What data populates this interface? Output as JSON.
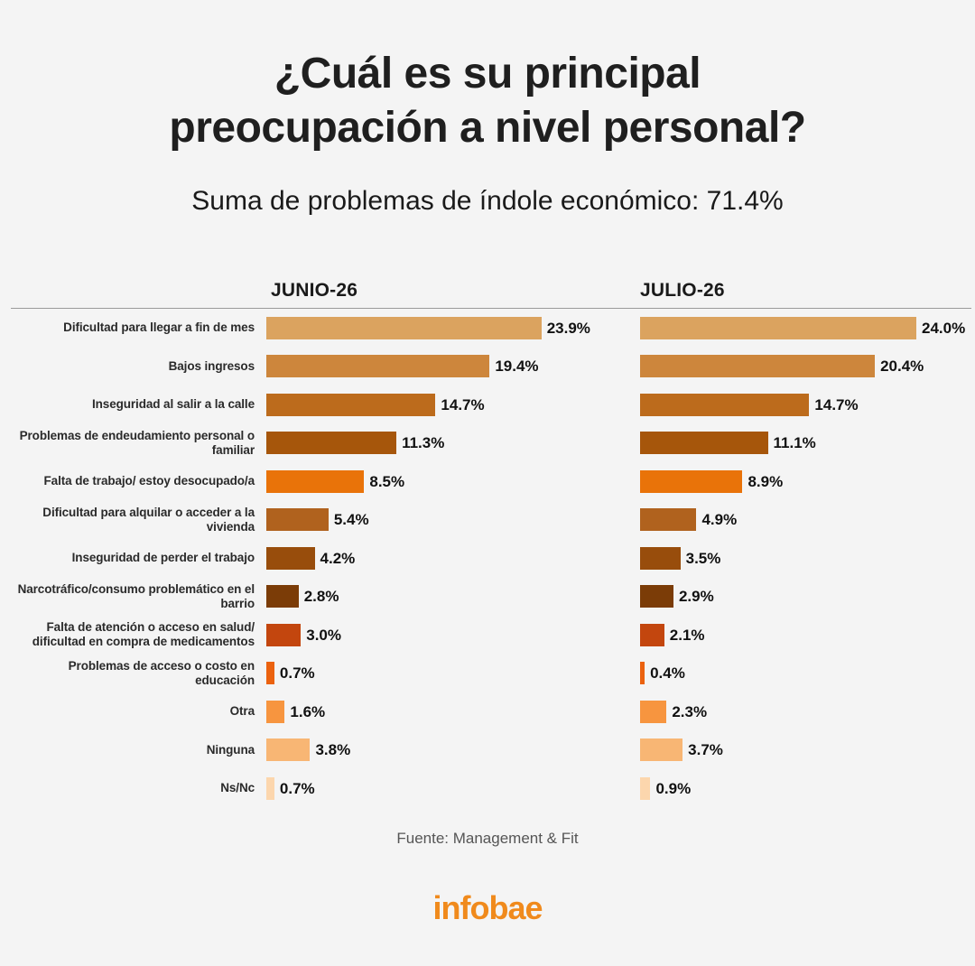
{
  "header": {
    "title_line1": "¿Cuál es su principal",
    "title_line2": "preocupación a nivel personal?",
    "subtitle": "Suma de problemas de índole económico: 71.4%"
  },
  "chart_data": {
    "type": "bar",
    "orientation": "horizontal",
    "categories": [
      "Dificultad para llegar a fin de mes",
      "Bajos ingresos",
      "Inseguridad al salir a la calle",
      "Problemas de endeudamiento personal o familiar",
      "Falta de trabajo/ estoy desocupado/a",
      "Dificultad para alquilar o acceder a la vivienda",
      "Inseguridad de perder el trabajo",
      "Narcotráfico/consumo problemático en el barrio",
      "Falta de atención o acceso en salud/ dificultad en compra de medicamentos",
      "Problemas de acceso o costo en educación",
      "Otra",
      "Ninguna",
      "Ns/Nc"
    ],
    "bar_colors": [
      "#dba35f",
      "#cd863c",
      "#bc6b1c",
      "#a6560b",
      "#e97309",
      "#b0621e",
      "#984d0c",
      "#7b3c07",
      "#c3460e",
      "#eb620f",
      "#f7953f",
      "#f8b674",
      "#fcd6ad"
    ],
    "series": [
      {
        "name": "JUNIO-26",
        "values": [
          23.9,
          19.4,
          14.7,
          11.3,
          8.5,
          5.4,
          4.2,
          2.8,
          3.0,
          0.7,
          1.6,
          3.8,
          0.7
        ],
        "labels": [
          "23.9%",
          "19.4%",
          "14.7%",
          "11.3%",
          "8.5%",
          "5.4%",
          "4.2%",
          "2.8%",
          "3.0%",
          "0.7%",
          "1.6%",
          "3.8%",
          "0.7%"
        ]
      },
      {
        "name": "JULIO-26",
        "values": [
          24.0,
          20.4,
          14.7,
          11.1,
          8.9,
          4.9,
          3.5,
          2.9,
          2.1,
          0.4,
          2.3,
          3.7,
          0.9
        ],
        "labels": [
          "24.0%",
          "20.4%",
          "14.7%",
          "11.1%",
          "8.9%",
          "4.9%",
          "3.5%",
          "2.9%",
          "2.1%",
          "0.4%",
          "2.3%",
          "3.7%",
          "0.9%"
        ]
      }
    ],
    "value_unit": "%"
  },
  "footer": {
    "source": "Fuente: Management & Fit",
    "logo": "infobae"
  }
}
